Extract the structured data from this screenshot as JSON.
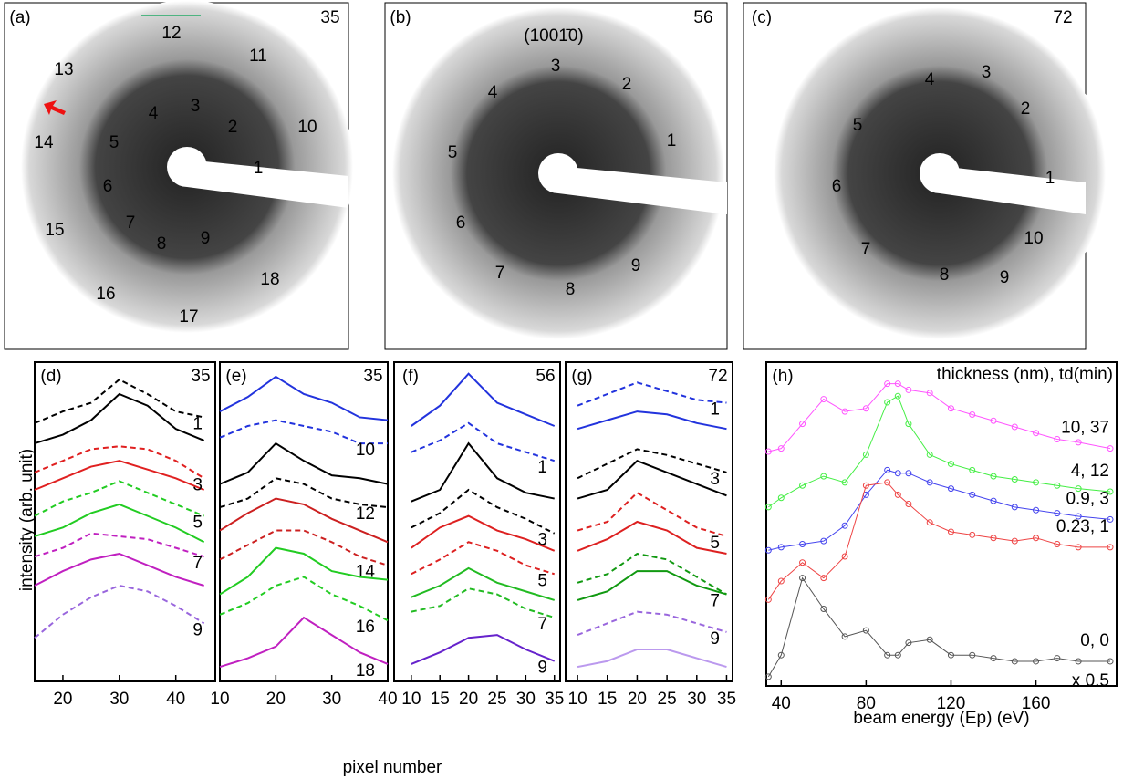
{
  "images": [
    {
      "panel": "(a)",
      "energy": "35",
      "spots": [
        "12",
        "11",
        "13",
        "10",
        "14",
        "4",
        "3",
        "2",
        "5",
        "1",
        "6",
        "7",
        "8",
        "9",
        "15",
        "18",
        "16",
        "17"
      ]
    },
    {
      "panel": "(b)",
      "energy": "56",
      "note": "(1001̄0)",
      "spots": [
        "3",
        "2",
        "4",
        "1",
        "5",
        "6",
        "7",
        "8",
        "9"
      ]
    },
    {
      "panel": "(c)",
      "energy": "72",
      "spots": [
        "4",
        "3",
        "2",
        "5",
        "1",
        "6",
        "7",
        "10",
        "8",
        "9"
      ]
    }
  ],
  "shared_ylabel": "intensity (arb. unit)",
  "shared_xlabel": "pixel number",
  "chart_data": [
    {
      "type": "line",
      "panel": "(d)",
      "energy": "35",
      "x": [
        15,
        20,
        25,
        30,
        35,
        40,
        45
      ],
      "xlim": [
        15,
        47
      ],
      "xticks": [
        20,
        30,
        40
      ],
      "ylim": [
        0,
        11
      ],
      "series": [
        {
          "name": "1",
          "color": "#000000",
          "dashed": [
            8.9,
            9.3,
            9.6,
            10.4,
            9.9,
            9.3,
            9.1
          ],
          "solid": [
            8.2,
            8.5,
            9.0,
            9.9,
            9.5,
            8.7,
            8.3
          ]
        },
        {
          "name": "3",
          "color": "#e02020",
          "dashed": [
            7.2,
            7.6,
            8.0,
            8.1,
            8.0,
            7.6,
            7.0
          ],
          "solid": [
            6.6,
            7.0,
            7.4,
            7.6,
            7.3,
            7.0,
            6.6
          ]
        },
        {
          "name": "5",
          "color": "#22cc22",
          "dashed": [
            5.7,
            6.2,
            6.5,
            6.9,
            6.5,
            6.1,
            5.7
          ],
          "solid": [
            5.0,
            5.3,
            5.8,
            6.1,
            5.7,
            5.3,
            4.8
          ]
        },
        {
          "name": "7",
          "color": "#c020c0",
          "dashed": [
            4.3,
            4.6,
            5.1,
            5.0,
            4.9,
            4.6,
            4.3
          ],
          "solid": [
            3.3,
            3.8,
            4.2,
            4.4,
            4.0,
            3.6,
            3.3
          ]
        },
        {
          "name": "9",
          "color": "#9966dd",
          "dashed": [
            1.5,
            2.3,
            2.9,
            3.3,
            3.1,
            2.6,
            2.0
          ]
        }
      ]
    },
    {
      "type": "line",
      "panel": "(e)",
      "energy": "35",
      "x": [
        10,
        15,
        20,
        25,
        30,
        35,
        40
      ],
      "xlim": [
        10,
        40
      ],
      "xticks": [
        10,
        20,
        30,
        40
      ],
      "ylim": [
        0,
        11
      ],
      "series": [
        {
          "name": "10",
          "color": "#2233dd",
          "solid": [
            9.3,
            9.8,
            10.5,
            9.9,
            9.6,
            9.1,
            9.0
          ],
          "dashed": [
            8.4,
            8.8,
            9.0,
            8.8,
            8.6,
            8.2,
            8.2
          ]
        },
        {
          "name": "12",
          "color": "#000000",
          "solid": [
            6.8,
            7.2,
            8.2,
            7.6,
            7.1,
            7.0,
            6.8
          ],
          "dashed": [
            6.0,
            6.3,
            7.0,
            6.8,
            6.3,
            6.1,
            6.0
          ]
        },
        {
          "name": "14",
          "color": "#cc2020",
          "solid": [
            5.2,
            5.8,
            6.3,
            6.1,
            5.6,
            5.2,
            4.8
          ],
          "dashed": [
            4.2,
            4.7,
            5.2,
            5.2,
            4.8,
            4.3,
            4.0
          ]
        },
        {
          "name": "16",
          "color": "#22cc22",
          "solid": [
            3.0,
            3.6,
            4.6,
            4.4,
            3.8,
            3.6,
            3.5
          ],
          "dashed": [
            2.3,
            2.7,
            3.3,
            3.6,
            3.0,
            2.6,
            2.1
          ]
        },
        {
          "name": "18",
          "color": "#c020c0",
          "solid": [
            0.5,
            0.8,
            1.2,
            2.2,
            1.6,
            1.0,
            0.6
          ]
        }
      ]
    },
    {
      "type": "line",
      "panel": "(f)",
      "energy": "56",
      "x": [
        10,
        15,
        20,
        25,
        30,
        35
      ],
      "xlim": [
        7,
        36
      ],
      "xticks": [
        10,
        15,
        20,
        25,
        30,
        35
      ],
      "ylim": [
        0,
        11
      ],
      "series": [
        {
          "name": "1",
          "color": "#2233dd",
          "solid": [
            8.8,
            9.5,
            10.6,
            9.6,
            9.2,
            8.8
          ],
          "dashed": [
            7.9,
            8.3,
            8.9,
            8.2,
            7.9,
            7.6
          ]
        },
        {
          "name": "3",
          "color": "#000000",
          "solid": [
            6.2,
            6.6,
            8.2,
            7.0,
            6.5,
            6.3
          ],
          "dashed": [
            5.3,
            5.8,
            6.6,
            6.0,
            5.6,
            5.1
          ]
        },
        {
          "name": "5",
          "color": "#dd2020",
          "solid": [
            4.6,
            5.3,
            5.7,
            5.2,
            4.9,
            4.5
          ],
          "dashed": [
            3.7,
            4.2,
            4.8,
            4.5,
            4.0,
            3.7
          ]
        },
        {
          "name": "7",
          "color": "#22bb22",
          "solid": [
            2.9,
            3.3,
            3.9,
            3.4,
            3.1,
            2.8
          ],
          "dashed": [
            2.4,
            2.6,
            3.2,
            3.0,
            2.5,
            2.2
          ]
        },
        {
          "name": "9",
          "color": "#6622cc",
          "solid": [
            0.6,
            1.0,
            1.5,
            1.6,
            1.1,
            0.7
          ]
        }
      ]
    },
    {
      "type": "line",
      "panel": "(g)",
      "energy": "72",
      "x": [
        10,
        15,
        20,
        25,
        30,
        35
      ],
      "xlim": [
        8,
        36
      ],
      "xticks": [
        10,
        15,
        20,
        25,
        30,
        35
      ],
      "ylim": [
        0,
        11
      ],
      "series": [
        {
          "name": "1",
          "color": "#2233dd",
          "dashed": [
            9.5,
            9.9,
            10.3,
            10.0,
            9.7,
            9.6
          ],
          "solid": [
            8.7,
            9.0,
            9.3,
            9.2,
            8.9,
            8.7
          ]
        },
        {
          "name": "3",
          "color": "#000000",
          "dashed": [
            7.0,
            7.5,
            8.0,
            7.8,
            7.5,
            7.2
          ],
          "solid": [
            6.3,
            6.6,
            7.6,
            7.2,
            6.8,
            6.4
          ]
        },
        {
          "name": "5",
          "color": "#dd2020",
          "dashed": [
            5.2,
            5.5,
            6.5,
            5.9,
            5.3,
            5.0
          ],
          "solid": [
            4.5,
            4.9,
            5.5,
            5.2,
            4.6,
            4.4
          ]
        },
        {
          "name": "7",
          "color": "#119911",
          "dashed": [
            3.4,
            3.7,
            4.4,
            4.2,
            3.6,
            3.0
          ],
          "solid": [
            2.8,
            3.1,
            3.8,
            3.8,
            3.3,
            3.0
          ]
        },
        {
          "name": "9",
          "color": "#9966dd",
          "dashed": [
            1.6,
            2.0,
            2.4,
            2.3,
            2.0,
            1.7
          ]
        },
        {
          "color": "#bb99ee",
          "solid": [
            0.5,
            0.7,
            1.1,
            1.1,
            0.8,
            0.5
          ]
        }
      ]
    },
    {
      "type": "line",
      "markers": true,
      "panel": "(h)",
      "header": "thickness (nm), td(min)",
      "xlabel": "beam energy (Ep) (eV)",
      "annotation": "x 0.5",
      "x": [
        34,
        40,
        50,
        60,
        70,
        80,
        90,
        95,
        100,
        110,
        120,
        130,
        140,
        150,
        160,
        170,
        180,
        195
      ],
      "xlim": [
        33,
        198
      ],
      "xticks": [
        40,
        80,
        120,
        160
      ],
      "ylim": [
        0,
        10.5
      ],
      "series": [
        {
          "name": "10, 37",
          "color": "#ff55ff",
          "values": [
            7.6,
            7.7,
            8.5,
            9.3,
            8.9,
            9.0,
            9.8,
            9.8,
            9.6,
            9.5,
            9.0,
            8.8,
            8.6,
            8.4,
            8.2,
            8.0,
            7.9,
            7.7
          ]
        },
        {
          "name": "4, 12",
          "color": "#44ee44",
          "values": [
            5.8,
            6.1,
            6.5,
            6.8,
            6.6,
            7.5,
            9.2,
            9.4,
            8.5,
            7.5,
            7.2,
            7.0,
            6.8,
            6.7,
            6.6,
            6.5,
            6.4,
            6.3
          ]
        },
        {
          "name": "0.9, 3",
          "color": "#4444ee",
          "values": [
            4.4,
            4.5,
            4.6,
            4.7,
            5.2,
            6.2,
            7.0,
            6.9,
            6.9,
            6.6,
            6.4,
            6.2,
            6.0,
            5.8,
            5.7,
            5.6,
            5.5,
            5.4
          ]
        },
        {
          "name": "0.23, 1",
          "color": "#ee4444",
          "values": [
            2.8,
            3.4,
            4.0,
            3.5,
            4.2,
            6.5,
            6.6,
            6.2,
            5.9,
            5.3,
            5.0,
            4.9,
            4.8,
            4.7,
            4.8,
            4.6,
            4.5,
            4.5
          ]
        },
        {
          "name": "0, 0",
          "color": "#555555",
          "values": [
            0.3,
            1.0,
            3.5,
            2.5,
            1.6,
            1.8,
            1.0,
            1.0,
            1.4,
            1.5,
            1.0,
            1.0,
            0.9,
            0.8,
            0.8,
            0.9,
            0.8,
            0.8
          ]
        }
      ]
    }
  ]
}
